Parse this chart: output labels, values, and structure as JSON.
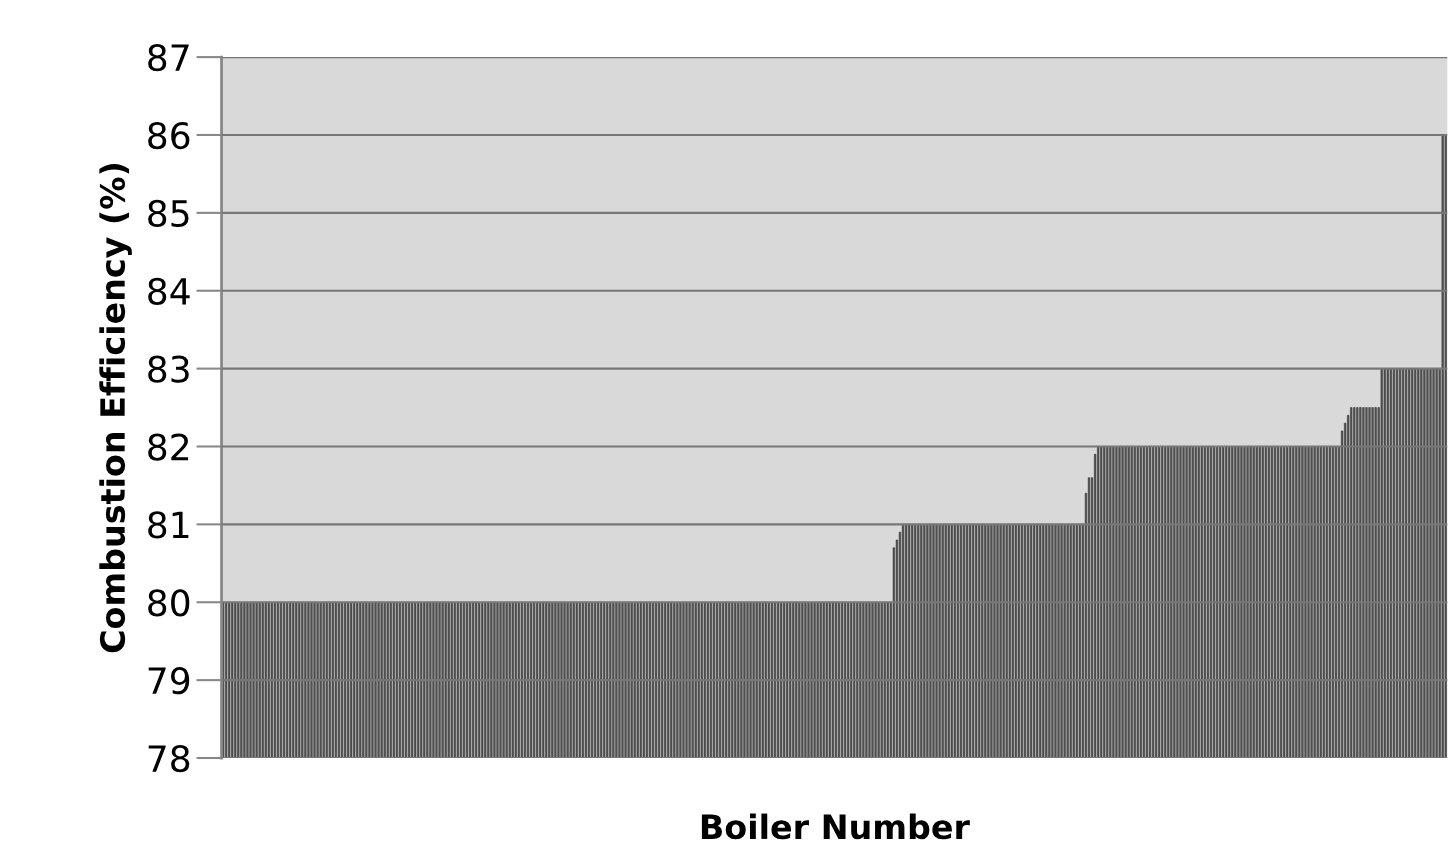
{
  "chart_data": {
    "type": "bar",
    "xlabel": "Boiler Number",
    "ylabel": "Combustion Efficiency (%)",
    "categories": [
      null,
      null,
      null,
      null,
      null,
      null,
      null,
      null,
      null,
      null,
      null,
      null,
      null,
      null,
      null,
      null,
      null,
      null,
      null,
      null,
      null,
      null,
      null,
      null,
      null,
      null,
      null,
      null,
      null,
      null,
      null,
      null,
      null,
      null,
      null,
      null,
      null,
      null,
      null,
      null,
      null,
      null,
      null,
      null,
      null,
      null,
      null,
      null,
      null,
      null,
      null,
      null,
      null,
      null,
      null,
      null,
      null,
      null,
      null,
      null,
      null,
      null,
      null,
      null,
      null,
      null,
      null,
      null,
      null,
      null,
      null,
      null,
      null,
      null,
      null,
      null,
      null,
      null,
      null,
      null,
      null,
      null,
      null,
      null,
      null,
      null,
      null,
      null,
      null,
      null,
      null,
      null,
      null,
      null,
      null,
      null,
      null,
      null,
      null,
      null,
      null,
      null,
      null,
      null,
      null,
      null,
      null,
      null,
      null,
      null,
      null,
      null,
      null,
      null,
      null,
      null,
      null,
      null,
      null,
      null,
      null,
      null,
      null,
      null,
      null,
      null,
      null,
      null,
      null,
      null,
      null,
      null,
      null,
      null,
      null,
      null,
      null,
      null,
      null,
      null,
      null,
      null,
      null,
      null,
      null,
      null,
      null,
      null,
      null,
      null,
      null,
      null,
      null,
      null,
      null,
      null,
      null,
      null,
      null,
      null,
      null,
      null,
      null,
      null,
      null,
      null,
      null,
      null,
      null,
      null,
      null,
      null,
      null,
      null,
      null,
      null,
      null,
      null,
      null,
      null,
      null,
      null,
      null,
      null,
      null,
      null,
      null,
      null,
      null,
      null,
      null,
      null,
      null,
      null,
      null,
      null,
      null,
      null,
      null,
      null,
      null,
      null,
      null,
      null,
      null,
      null,
      null,
      null,
      null,
      null,
      null,
      null,
      null,
      null,
      null,
      null,
      null,
      null,
      null,
      null,
      null,
      null,
      null,
      null,
      null,
      null,
      null,
      null,
      null,
      null,
      null,
      null,
      null,
      null,
      null,
      null,
      null,
      null,
      null,
      null,
      null,
      null,
      null,
      null,
      null,
      null,
      null,
      null,
      null,
      null,
      null,
      null,
      null,
      null,
      null,
      null,
      null,
      null,
      null,
      null,
      null,
      null,
      null,
      null,
      null,
      null,
      null,
      null,
      null,
      null,
      null,
      null,
      null,
      null,
      null,
      null,
      null,
      null,
      null,
      null,
      null,
      null,
      null,
      null,
      null,
      null,
      null,
      null,
      null,
      null,
      null,
      null,
      null,
      null,
      null,
      null,
      null,
      null,
      null,
      null,
      null,
      null,
      null,
      null,
      null,
      null,
      null,
      null,
      null,
      null,
      null,
      null,
      null,
      null,
      null,
      null,
      null,
      null,
      null,
      null,
      null,
      null,
      null,
      null,
      null,
      null,
      null,
      null,
      null,
      null,
      null,
      null,
      null,
      null,
      null,
      null,
      null,
      null,
      null,
      null,
      null,
      null,
      null,
      null,
      null,
      null,
      null,
      null,
      null,
      null,
      null,
      null,
      null,
      null,
      null,
      null,
      null,
      null,
      null,
      null,
      null,
      null,
      null,
      null,
      null,
      null,
      null,
      null,
      null,
      null,
      null,
      null,
      null,
      null,
      null,
      null,
      null,
      null,
      null,
      null,
      null,
      null,
      null,
      null,
      null,
      null,
      null,
      null,
      null,
      null,
      null,
      null,
      null,
      null,
      null,
      null,
      null,
      null,
      null,
      null,
      null,
      null
    ],
    "values": [
      80,
      80,
      80,
      80,
      80,
      80,
      80,
      80,
      80,
      80,
      80,
      80,
      80,
      80,
      80,
      80,
      80,
      80,
      80,
      80,
      80,
      80,
      80,
      80,
      80,
      80,
      80,
      80,
      80,
      80,
      80,
      80,
      80,
      80,
      80,
      80,
      80,
      80,
      80,
      80,
      80,
      80,
      80,
      80,
      80,
      80,
      80,
      80,
      80,
      80,
      80,
      80,
      80,
      80,
      80,
      80,
      80,
      80,
      80,
      80,
      80,
      80,
      80,
      80,
      80,
      80,
      80,
      80,
      80,
      80,
      80,
      80,
      80,
      80,
      80,
      80,
      80,
      80,
      80,
      80,
      80,
      80,
      80,
      80,
      80,
      80,
      80,
      80,
      80,
      80,
      80,
      80,
      80,
      80,
      80,
      80,
      80,
      80,
      80,
      80,
      80,
      80,
      80,
      80,
      80,
      80,
      80,
      80,
      80,
      80,
      80,
      80,
      80,
      80,
      80,
      80,
      80,
      80,
      80,
      80,
      80,
      80,
      80,
      80,
      80,
      80,
      80,
      80,
      80,
      80,
      80,
      80,
      80,
      80,
      80,
      80,
      80,
      80,
      80,
      80,
      80,
      80,
      80,
      80,
      80,
      80,
      80,
      80,
      80,
      80,
      80,
      80,
      80,
      80,
      80,
      80,
      80,
      80,
      80,
      80,
      80,
      80,
      80,
      80,
      80,
      80,
      80,
      80,
      80,
      80,
      80,
      80,
      80,
      80,
      80,
      80,
      80,
      80,
      80,
      80,
      80,
      80,
      80,
      80,
      80,
      80,
      80,
      80,
      80,
      80,
      80,
      80,
      80,
      80,
      80,
      80,
      80,
      80,
      80,
      80,
      80,
      80,
      80,
      80,
      80,
      80,
      80,
      80,
      80,
      80,
      80,
      80,
      80,
      80,
      80,
      80,
      80,
      80,
      80,
      80,
      80.7,
      80.8,
      80.9,
      81,
      81,
      81,
      81,
      81,
      81,
      81,
      81,
      81,
      81,
      81,
      81,
      81,
      81,
      81,
      81,
      81,
      81,
      81,
      81,
      81,
      81,
      81,
      81,
      81,
      81,
      81,
      81,
      81,
      81,
      81,
      81,
      81,
      81,
      81,
      81,
      81,
      81,
      81,
      81,
      81,
      81,
      81,
      81,
      81,
      81,
      81,
      81,
      81,
      81,
      81,
      81,
      81,
      81,
      81,
      81,
      81,
      81,
      81,
      81,
      81.4,
      81.6,
      81.6,
      81.9,
      82,
      82,
      82,
      82,
      82,
      82,
      82,
      82,
      82,
      82,
      82,
      82,
      82,
      82,
      82,
      82,
      82,
      82,
      82,
      82,
      82,
      82,
      82,
      82,
      82,
      82,
      82,
      82,
      82,
      82,
      82,
      82,
      82,
      82,
      82,
      82,
      82,
      82,
      82,
      82,
      82,
      82,
      82,
      82,
      82,
      82,
      82,
      82,
      82,
      82,
      82,
      82,
      82,
      82,
      82,
      82,
      82,
      82,
      82,
      82,
      82,
      82,
      82,
      82,
      82,
      82,
      82,
      82,
      82,
      82,
      82,
      82,
      82,
      82,
      82,
      82,
      82,
      82,
      82,
      82,
      82.2,
      82.3,
      82.4,
      82.5,
      82.5,
      82.5,
      82.5,
      82.5,
      82.5,
      82.5,
      82.5,
      82.5,
      82.5,
      83,
      83,
      83,
      83,
      83,
      83,
      83,
      83,
      83,
      83,
      83,
      83,
      83,
      83,
      83,
      83,
      83,
      83,
      83,
      83,
      86,
      86
    ],
    "color": "#5a5a5a",
    "ylim": [
      78,
      87
    ],
    "yticks": [
      78,
      79,
      80,
      81,
      82,
      83,
      84,
      85,
      86,
      87
    ],
    "grid": "y",
    "legend": false
  }
}
